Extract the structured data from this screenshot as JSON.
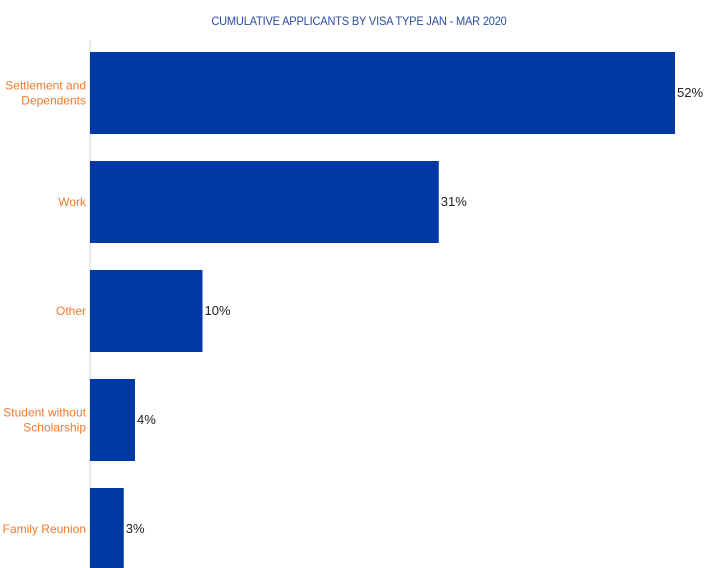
{
  "chart_data": {
    "type": "bar",
    "orientation": "horizontal",
    "title": "CUMULATIVE  APPLICANTS BY VISA TYPE JAN - MAR 2020",
    "categories": [
      [
        "Settlement and",
        "Dependents"
      ],
      [
        "Work"
      ],
      [
        "Other"
      ],
      [
        "Student without",
        "Scholarship"
      ],
      [
        "Family Reunion"
      ]
    ],
    "values": [
      52,
      31,
      10,
      4,
      3
    ],
    "value_labels": [
      "52%",
      "31%",
      "10%",
      "4%",
      "3%"
    ],
    "xlabel": "",
    "ylabel": "",
    "xlim": [
      0,
      52
    ],
    "grid": false,
    "legend": "none",
    "colors": {
      "bar": "#0039a6",
      "category_label": "#f07a2c",
      "title": "#2a4ea0",
      "value_label": "#222222"
    }
  }
}
